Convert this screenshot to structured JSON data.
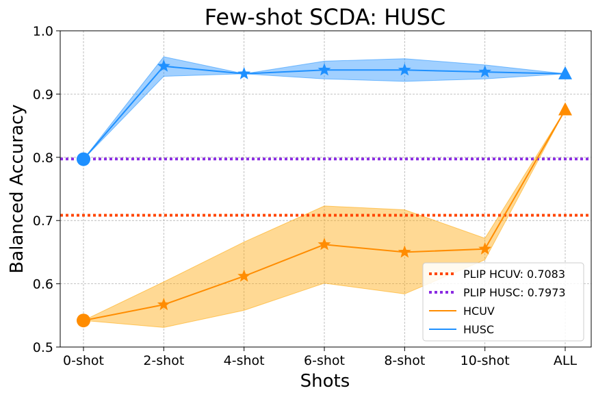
{
  "chart_data": {
    "type": "line",
    "title": "Few-shot SCDA: HUSC",
    "xlabel": "Shots",
    "ylabel": "Balanced Accuracy",
    "categories": [
      "0-shot",
      "2-shot",
      "4-shot",
      "6-shot",
      "8-shot",
      "10-shot",
      "ALL"
    ],
    "ylim": [
      0.5,
      1.0
    ],
    "yticks": [
      "0.5",
      "0.6",
      "0.7",
      "0.8",
      "0.9",
      "1.0"
    ],
    "yticks_values": [
      0.5,
      0.6,
      0.7,
      0.8,
      0.9,
      1.0
    ],
    "grid": true,
    "legend_position": "lower-right",
    "series": [
      {
        "name": "HCUV",
        "color": "#ff8c00",
        "fill_color": "#ffa500",
        "values": [
          0.542,
          0.567,
          0.612,
          0.662,
          0.65,
          0.655,
          0.875
        ],
        "lower": [
          0.542,
          0.531,
          0.558,
          0.601,
          0.584,
          0.638,
          0.875
        ],
        "upper": [
          0.542,
          0.603,
          0.666,
          0.723,
          0.717,
          0.672,
          0.875
        ]
      },
      {
        "name": "HUSC",
        "color": "#1e90ff",
        "fill_color": "#1e90ff",
        "values": [
          0.797,
          0.944,
          0.932,
          0.938,
          0.938,
          0.935,
          0.932
        ],
        "lower": [
          0.797,
          0.928,
          0.932,
          0.924,
          0.92,
          0.924,
          0.932
        ],
        "upper": [
          0.797,
          0.959,
          0.932,
          0.952,
          0.956,
          0.946,
          0.932
        ]
      }
    ],
    "reference_lines": [
      {
        "label": "PLIP HCUV: 0.7083",
        "value": 0.7083,
        "color": "#ff4500"
      },
      {
        "label": "PLIP HUSC: 0.7973",
        "value": 0.7973,
        "color": "#8a2be2"
      }
    ]
  }
}
